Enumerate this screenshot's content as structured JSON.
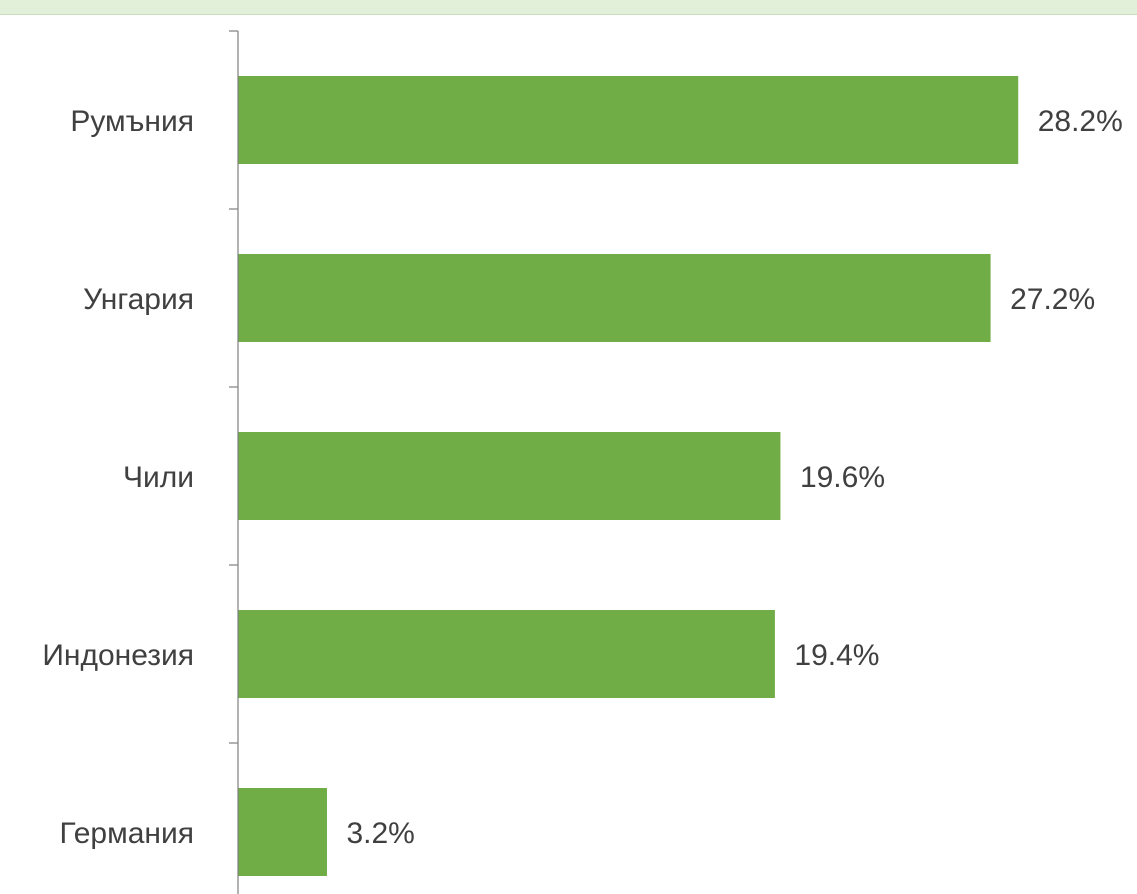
{
  "chart_data": {
    "type": "bar",
    "orientation": "horizontal",
    "categories": [
      "Румъния",
      "Унгария",
      "Чили",
      "Индонезия",
      "Германия"
    ],
    "values": [
      28.2,
      27.2,
      19.6,
      19.4,
      3.2
    ],
    "value_labels": [
      "28.2%",
      "27.2%",
      "19.6%",
      "19.4%",
      "3.2%"
    ],
    "unit": "%",
    "xlim": [
      0,
      29
    ],
    "grid": false,
    "legend": "none",
    "colors": {
      "bar": "#70ad47",
      "axis": "#7f7f7f",
      "text": "#404040",
      "top_band": "#e2efd9"
    }
  }
}
